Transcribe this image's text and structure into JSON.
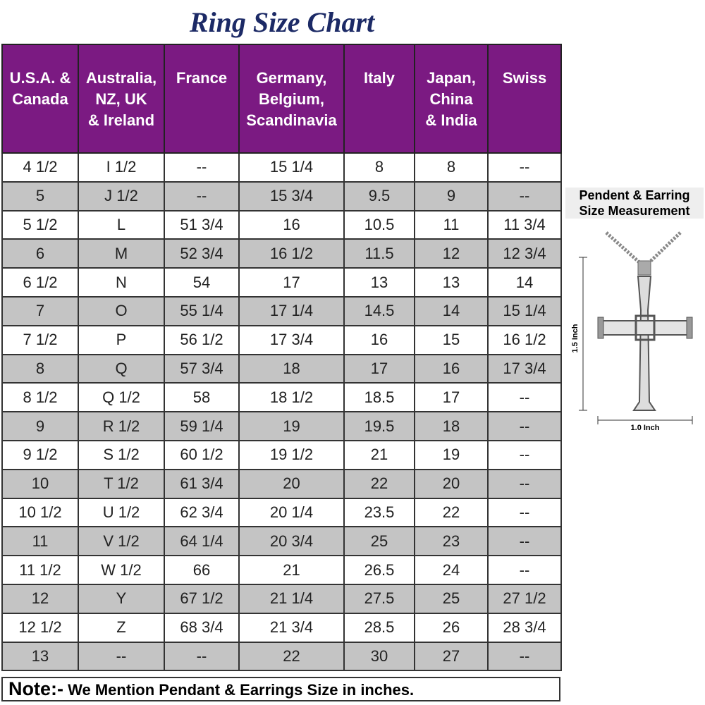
{
  "title": "Ring Size Chart",
  "table": {
    "headers": [
      "U.S.A. &\nCanada",
      "Australia,\nNZ, UK\n& Ireland",
      "France",
      "Germany,\nBelgium,\nScandinavia",
      "Italy",
      "Japan,\nChina\n& India",
      "Swiss"
    ],
    "rows": [
      [
        "4 1/2",
        "I 1/2",
        "--",
        "15 1/4",
        "8",
        "8",
        "--"
      ],
      [
        "5",
        "J 1/2",
        "--",
        "15 3/4",
        "9.5",
        "9",
        "--"
      ],
      [
        "5 1/2",
        "L",
        "51 3/4",
        "16",
        "10.5",
        "11",
        "11 3/4"
      ],
      [
        "6",
        "M",
        "52 3/4",
        "16 1/2",
        "11.5",
        "12",
        "12 3/4"
      ],
      [
        "6 1/2",
        "N",
        "54",
        "17",
        "13",
        "13",
        "14"
      ],
      [
        "7",
        "O",
        "55 1/4",
        "17 1/4",
        "14.5",
        "14",
        "15 1/4"
      ],
      [
        "7 1/2",
        "P",
        "56 1/2",
        "17 3/4",
        "16",
        "15",
        "16 1/2"
      ],
      [
        "8",
        "Q",
        "57 3/4",
        "18",
        "17",
        "16",
        "17 3/4"
      ],
      [
        "8 1/2",
        "Q 1/2",
        "58",
        "18 1/2",
        "18.5",
        "17",
        "--"
      ],
      [
        "9",
        "R 1/2",
        "59 1/4",
        "19",
        "19.5",
        "18",
        "--"
      ],
      [
        "9 1/2",
        "S 1/2",
        "60 1/2",
        "19 1/2",
        "21",
        "19",
        "--"
      ],
      [
        "10",
        "T 1/2",
        "61 3/4",
        "20",
        "22",
        "20",
        "--"
      ],
      [
        "10 1/2",
        "U 1/2",
        "62 3/4",
        "20 1/4",
        "23.5",
        "22",
        "--"
      ],
      [
        "11",
        "V 1/2",
        "64 1/4",
        "20 3/4",
        "25",
        "23",
        "--"
      ],
      [
        "11 1/2",
        "W 1/2",
        "66",
        "21",
        "26.5",
        "24",
        "--"
      ],
      [
        "12",
        "Y",
        "67 1/2",
        "21 1/4",
        "27.5",
        "25",
        "27 1/2"
      ],
      [
        "12 1/2",
        "Z",
        "68 3/4",
        "21 3/4",
        "28.5",
        "26",
        "28 3/4"
      ],
      [
        "13",
        "--",
        "--",
        "22",
        "30",
        "27",
        "--"
      ]
    ]
  },
  "note": {
    "label": "Note:-",
    "text": "We Mention Pendant & Earrings Size in inches."
  },
  "pendant": {
    "title": "Pendent & Earring\nSize Measurement",
    "height_label": "1.5 Inch",
    "width_label": "1.0 Inch"
  }
}
